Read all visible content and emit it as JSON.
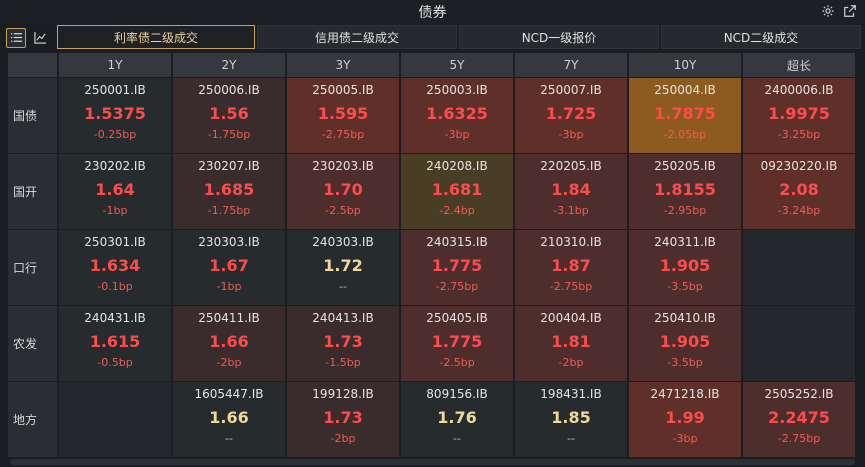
{
  "window": {
    "title": "债券"
  },
  "icons": {
    "settings": "gear-icon",
    "popout": "popout-icon",
    "list_view": "list-icon",
    "chart_view": "line-chart-icon"
  },
  "tabs": [
    {
      "label": "利率债二级成交",
      "active": true
    },
    {
      "label": "信用债二级成交",
      "active": false
    },
    {
      "label": "NCD一级报价",
      "active": false
    },
    {
      "label": "NCD二级成交",
      "active": false
    }
  ],
  "columns": [
    "1Y",
    "2Y",
    "3Y",
    "5Y",
    "7Y",
    "10Y",
    "超长"
  ],
  "rows": [
    {
      "label": "国债",
      "cells": [
        {
          "code": "250001.IB",
          "yield": "1.5375",
          "change": "-0.25bp"
        },
        {
          "code": "250006.IB",
          "yield": "1.56",
          "change": "-1.75bp"
        },
        {
          "code": "250005.IB",
          "yield": "1.595",
          "change": "-2.75bp"
        },
        {
          "code": "250003.IB",
          "yield": "1.6325",
          "change": "-3bp"
        },
        {
          "code": "250007.IB",
          "yield": "1.725",
          "change": "-3bp"
        },
        {
          "code": "250004.IB",
          "yield": "1.7875",
          "change": "-2.05bp"
        },
        {
          "code": "2400006.IB",
          "yield": "1.9975",
          "change": "-3.25bp"
        }
      ]
    },
    {
      "label": "国开",
      "cells": [
        {
          "code": "230202.IB",
          "yield": "1.64",
          "change": "-1bp"
        },
        {
          "code": "230207.IB",
          "yield": "1.685",
          "change": "-1.75bp"
        },
        {
          "code": "230203.IB",
          "yield": "1.70",
          "change": "-2.5bp"
        },
        {
          "code": "240208.IB",
          "yield": "1.681",
          "change": "-2.4bp"
        },
        {
          "code": "220205.IB",
          "yield": "1.84",
          "change": "-3.1bp"
        },
        {
          "code": "250205.IB",
          "yield": "1.8155",
          "change": "-2.95bp"
        },
        {
          "code": "09230220.IB",
          "yield": "2.08",
          "change": "-3.24bp"
        }
      ]
    },
    {
      "label": "口行",
      "cells": [
        {
          "code": "250301.IB",
          "yield": "1.634",
          "change": "-0.1bp"
        },
        {
          "code": "230303.IB",
          "yield": "1.67",
          "change": "-1bp"
        },
        {
          "code": "240303.IB",
          "yield": "1.72",
          "change": "--"
        },
        {
          "code": "240315.IB",
          "yield": "1.775",
          "change": "-2.75bp"
        },
        {
          "code": "210310.IB",
          "yield": "1.87",
          "change": "-2.75bp"
        },
        {
          "code": "240311.IB",
          "yield": "1.905",
          "change": "-3.5bp"
        },
        {
          "code": "",
          "yield": "",
          "change": ""
        }
      ]
    },
    {
      "label": "农发",
      "cells": [
        {
          "code": "240431.IB",
          "yield": "1.615",
          "change": "-0.5bp"
        },
        {
          "code": "250411.IB",
          "yield": "1.66",
          "change": "-2bp"
        },
        {
          "code": "240413.IB",
          "yield": "1.73",
          "change": "-1.5bp"
        },
        {
          "code": "250405.IB",
          "yield": "1.775",
          "change": "-2.5bp"
        },
        {
          "code": "200404.IB",
          "yield": "1.81",
          "change": "-2bp"
        },
        {
          "code": "250410.IB",
          "yield": "1.905",
          "change": "-3.5bp"
        },
        {
          "code": "",
          "yield": "",
          "change": ""
        }
      ]
    },
    {
      "label": "地方",
      "cells": [
        {
          "code": "",
          "yield": "",
          "change": ""
        },
        {
          "code": "1605447.IB",
          "yield": "1.66",
          "change": "--"
        },
        {
          "code": "199128.IB",
          "yield": "1.73",
          "change": "-2bp"
        },
        {
          "code": "809156.IB",
          "yield": "1.76",
          "change": "--"
        },
        {
          "code": "198431.IB",
          "yield": "1.85",
          "change": "--"
        },
        {
          "code": "2471218.IB",
          "yield": "1.99",
          "change": "-3bp"
        },
        {
          "code": "2505252.IB",
          "yield": "2.2475",
          "change": "-2.75bp"
        }
      ]
    }
  ]
}
